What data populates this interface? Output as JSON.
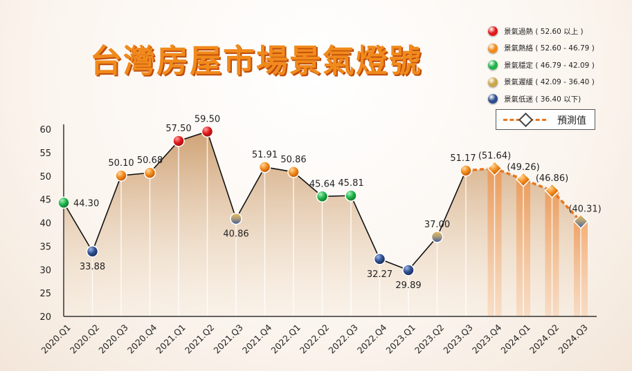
{
  "title": "台灣房屋市場景氣燈號",
  "legend": [
    {
      "label": "景氣過熱 ( 52.60 以上 )",
      "color": "#e01a1a"
    },
    {
      "label": "景氣熱絡 ( 52.60 - 46.79 )",
      "color": "#f28a1a"
    },
    {
      "label": "景氣穩定 ( 46.79 - 42.09 )",
      "color": "#1fb34a"
    },
    {
      "label": "景氣遲緩 ( 42.09 - 36.40 )",
      "color": "#c9a64a"
    },
    {
      "label": "景氣低迷 ( 36.40 以下)",
      "color": "#2e4f8f"
    }
  ],
  "forecast_label": "預測值",
  "chart_data": {
    "type": "line",
    "categories": [
      "2020.Q1",
      "2020.Q2",
      "2020.Q3",
      "2020.Q4",
      "2021.Q1",
      "2021.Q2",
      "2021.Q3",
      "2021.Q4",
      "2022.Q1",
      "2022.Q2",
      "2022.Q3",
      "2022.Q4",
      "2023.Q1",
      "2023.Q2",
      "2023.Q3",
      "2023.Q4",
      "2024.Q1",
      "2024.Q2",
      "2024.Q3"
    ],
    "values": [
      44.3,
      33.88,
      50.1,
      50.68,
      57.5,
      59.5,
      40.86,
      51.91,
      50.86,
      45.64,
      45.81,
      32.27,
      29.89,
      37.0,
      51.17,
      51.64,
      49.26,
      46.86,
      40.31
    ],
    "labels": [
      "44.30",
      "33.88",
      "50.10",
      "50.68",
      "57.50",
      "59.50",
      "40.86",
      "51.91",
      "50.86",
      "45.64",
      "45.81",
      "32.27",
      "29.89",
      "37.00",
      "51.17",
      "(51.64)",
      "(49.26)",
      "(46.86)",
      "(40.31)"
    ],
    "signal": [
      "stable",
      "sluggish",
      "hot",
      "hot",
      "overheat",
      "overheat",
      "slow",
      "hot",
      "hot",
      "stable",
      "stable",
      "sluggish",
      "sluggish",
      "slow",
      "hot",
      "hot",
      "hot",
      "hot",
      "slow"
    ],
    "forecast_from_index": 15,
    "ylim": [
      20,
      60
    ],
    "yticks": [
      20,
      25,
      30,
      35,
      40,
      45,
      50,
      55,
      60
    ],
    "grid": false
  }
}
